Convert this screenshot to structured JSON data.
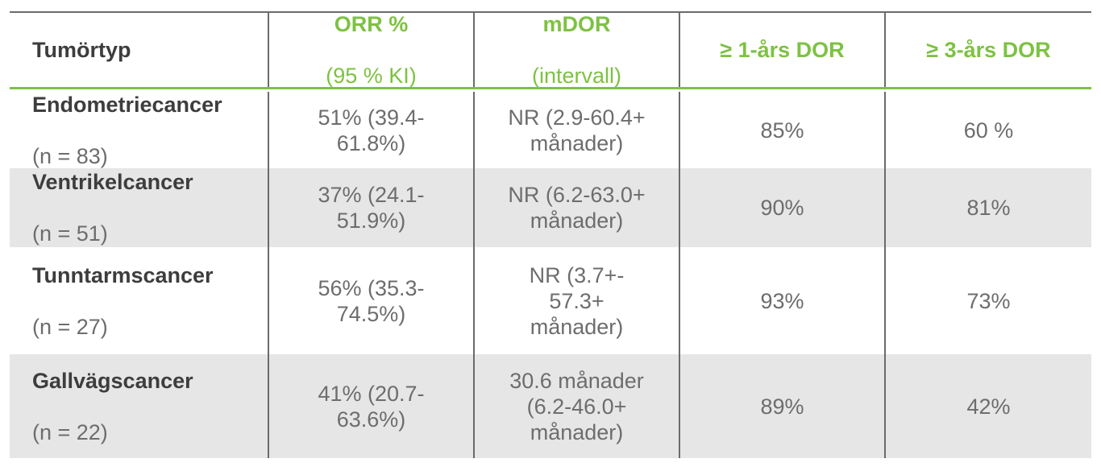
{
  "table": {
    "headers": [
      {
        "main": "Tumörtyp",
        "sub": ""
      },
      {
        "main": "ORR %",
        "sub": "(95 % KI)"
      },
      {
        "main": "mDOR",
        "sub": "(intervall)"
      },
      {
        "main": "≥ 1-års DOR",
        "sub": ""
      },
      {
        "main": "≥ 3-års DOR",
        "sub": ""
      }
    ],
    "rows": [
      {
        "tumor": "Endometriecancer",
        "n": "(n = 83)",
        "orr": "51% (39.4-\n61.8%)",
        "mdor": "NR (2.9-60.4+\nmånader)",
        "dor1": "85%",
        "dor3": "60 %"
      },
      {
        "tumor": "Ventrikelcancer",
        "n": "(n = 51)",
        "orr": "37%  (24.1-\n51.9%)",
        "mdor": "NR (6.2-63.0+\nmånader)",
        "dor1": "90%",
        "dor3": "81%"
      },
      {
        "tumor": "Tunntarmscancer",
        "n": "(n = 27)",
        "orr": "56% (35.3-\n74.5%)",
        "mdor": "NR (3.7+-\n57.3+\nmånader)",
        "dor1": "93%",
        "dor3": "73%"
      },
      {
        "tumor": "Gallvägscancer",
        "n": "(n = 22)",
        "orr": "41% (20.7-\n63.6%)",
        "mdor": "30.6 månader\n(6.2-46.0+\nmånader)",
        "dor1": "89%",
        "dor3": "42%"
      }
    ],
    "colors": {
      "accent_green": "#7dc242",
      "row_shade": "#e6e6e6",
      "rule": "#6b6b6b",
      "text_dark": "#3d3d3d",
      "text_gray": "#6d6d6d"
    }
  }
}
